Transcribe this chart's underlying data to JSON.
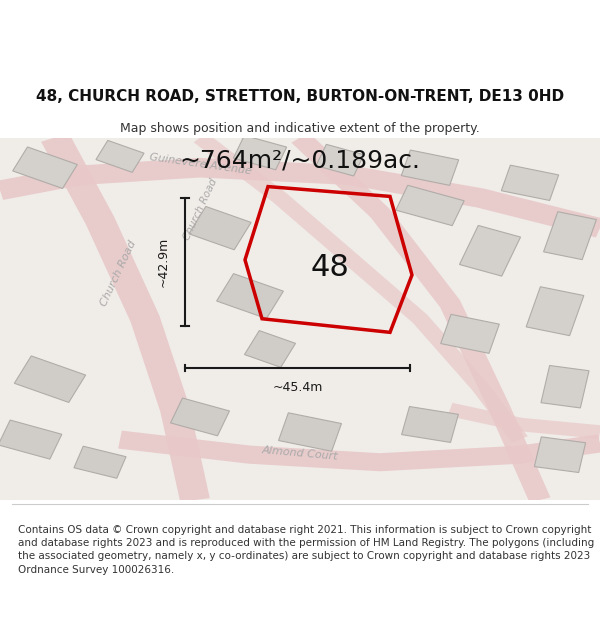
{
  "title": "48, CHURCH ROAD, STRETTON, BURTON-ON-TRENT, DE13 0HD",
  "subtitle": "Map shows position and indicative extent of the property.",
  "area_text": "~764m²/~0.189ac.",
  "label_48": "48",
  "dim_height": "~42.9m",
  "dim_width": "~45.4m",
  "footer": "Contains OS data © Crown copyright and database right 2021. This information is subject to Crown copyright and database rights 2023 and is reproduced with the permission of HM Land Registry. The polygons (including the associated geometry, namely x, y co-ordinates) are subject to Crown copyright and database rights 2023 Ordnance Survey 100026316.",
  "bg_color": "#f5f0f0",
  "map_bg": "#f0ece8",
  "road_color": "#f5b8b8",
  "building_color": "#d8d4d0",
  "building_edge": "#b8b4b0",
  "highlight_color": "#cc0000",
  "dim_line_color": "#1a1a1a",
  "road_label_color": "#aaaaaa",
  "street_label_color": "#999999",
  "title_fontsize": 11,
  "subtitle_fontsize": 9,
  "area_fontsize": 18,
  "label48_fontsize": 22,
  "dim_fontsize": 9,
  "footer_fontsize": 7.5,
  "map_extent": [
    0,
    1,
    0,
    1
  ]
}
